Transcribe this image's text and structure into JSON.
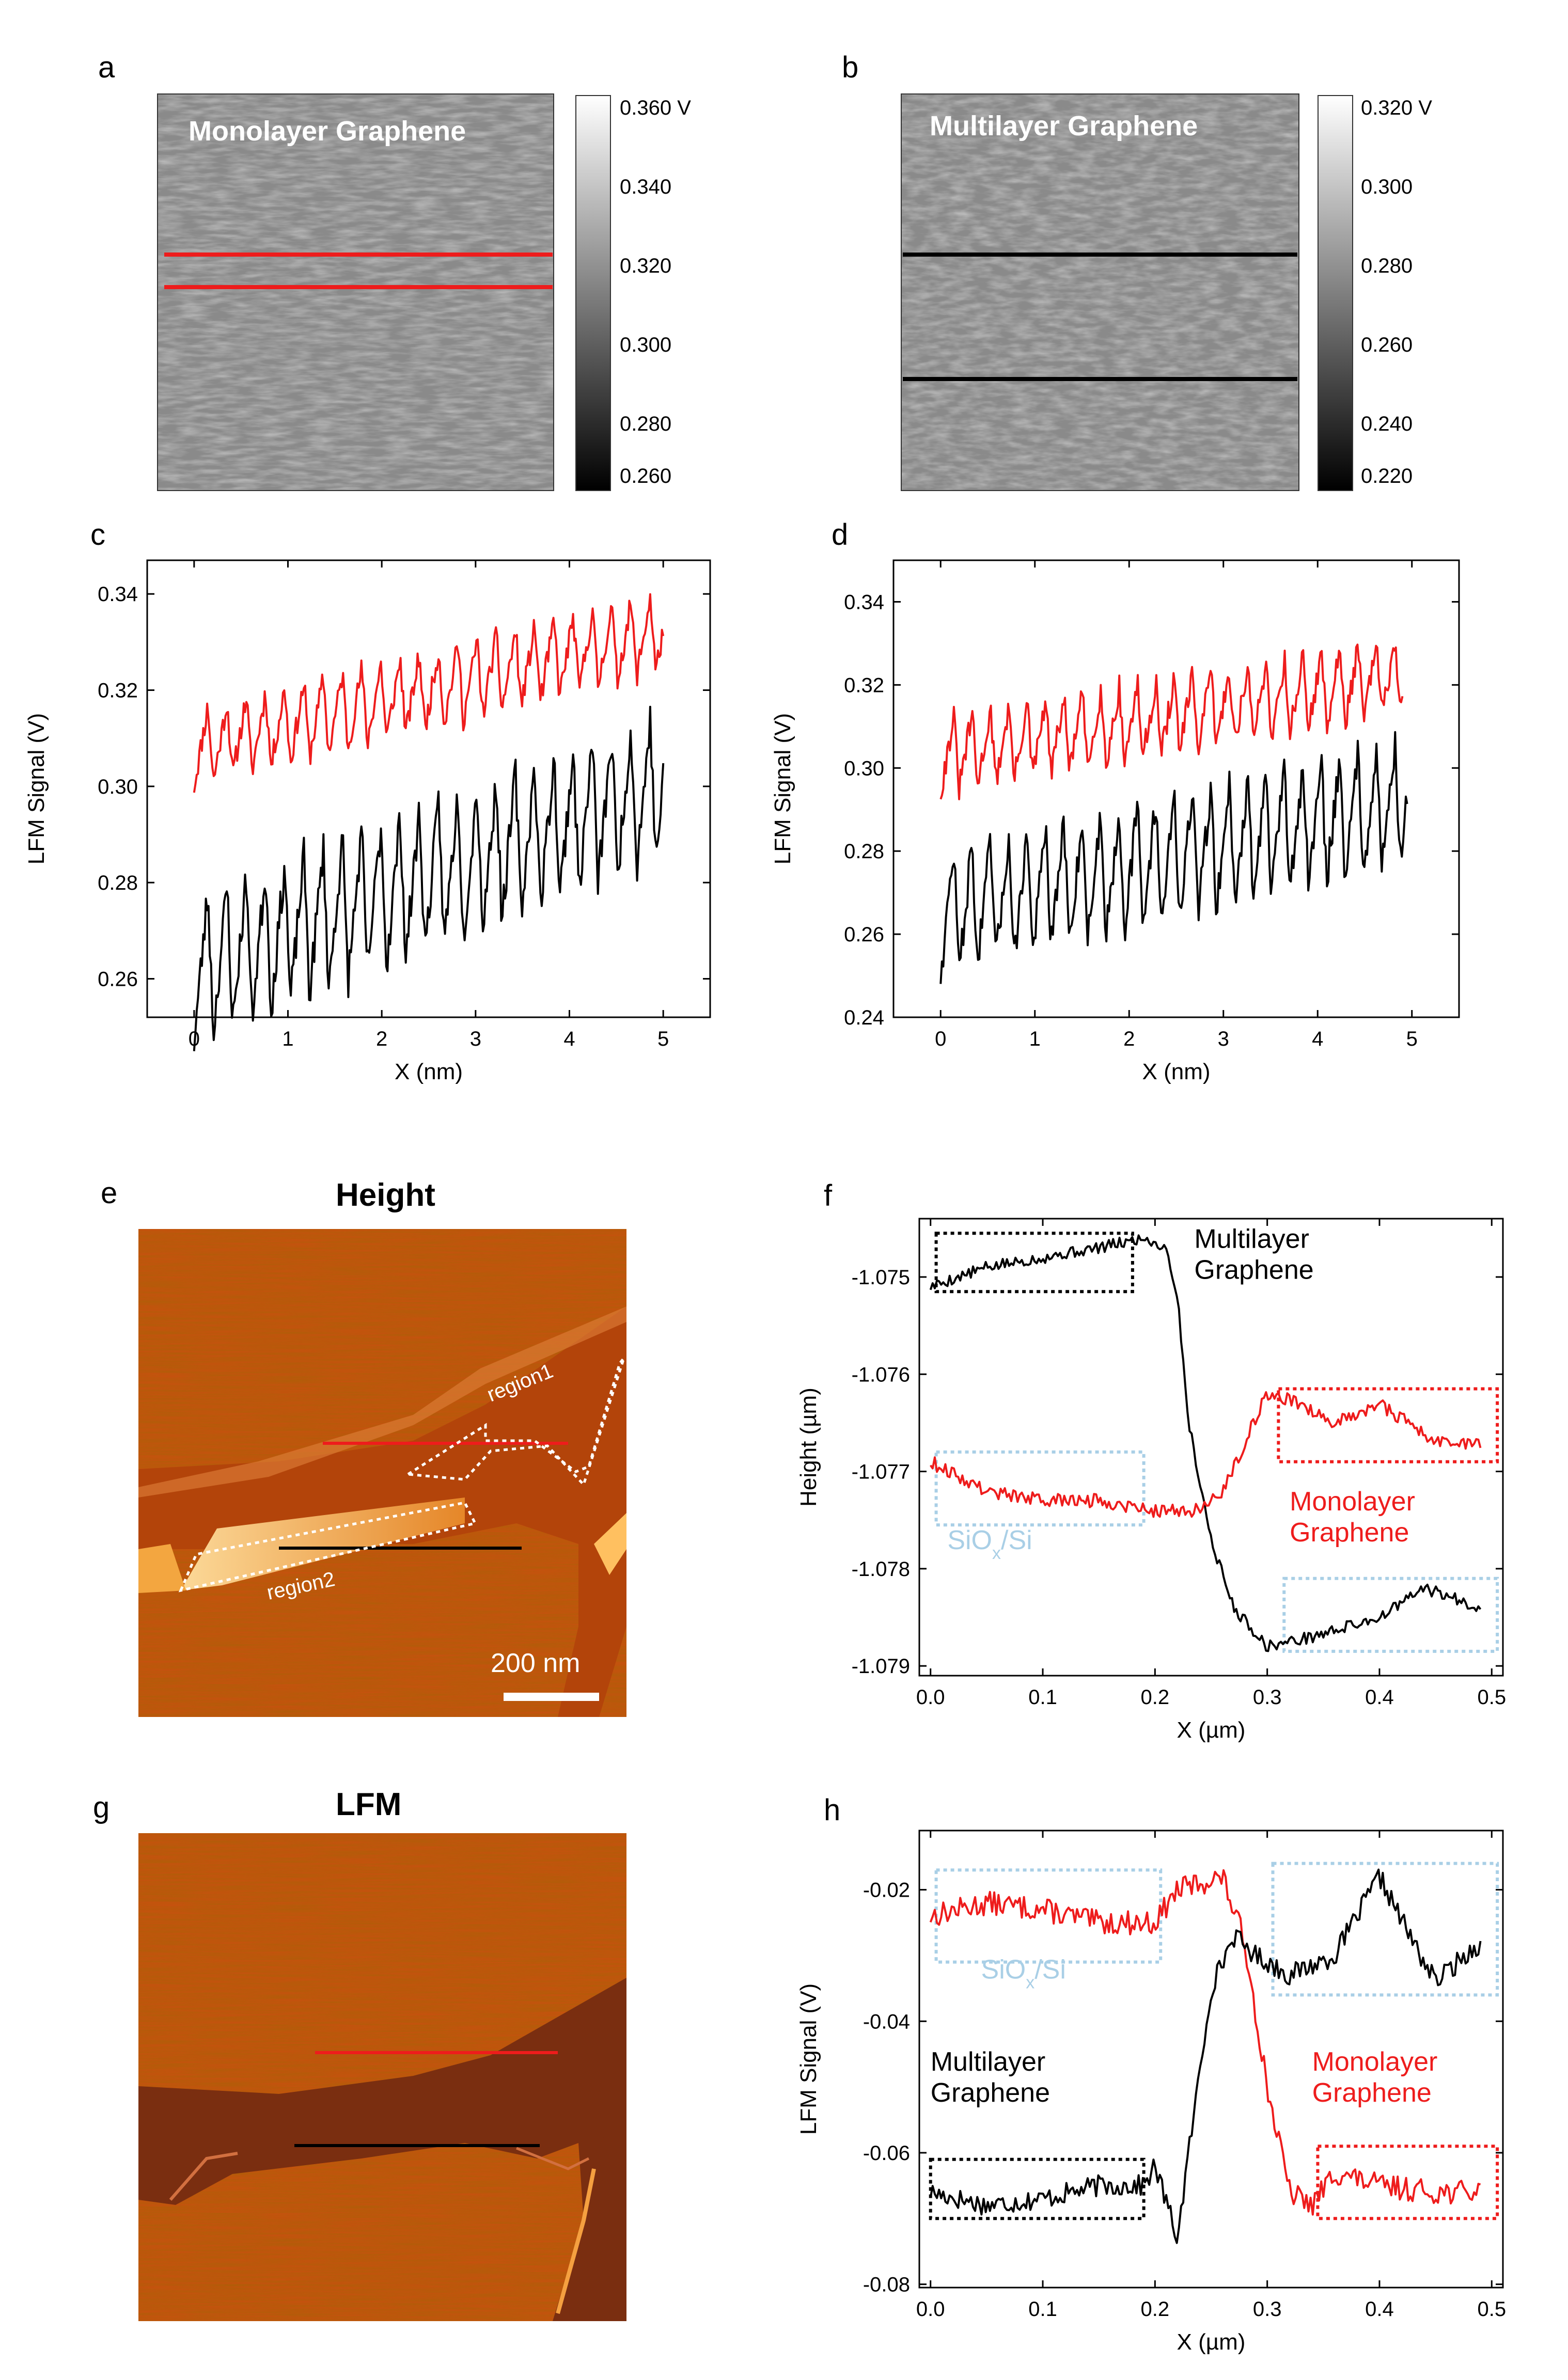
{
  "panels": {
    "a": {
      "label": "a",
      "title": "Monolayer Graphene",
      "colorbar": [
        "0.360 V",
        "0.340",
        "0.320",
        "0.300",
        "0.280",
        "0.260"
      ]
    },
    "b": {
      "label": "b",
      "title": "Multilayer Graphene",
      "colorbar": [
        "0.320 V",
        "0.300",
        "0.280",
        "0.260",
        "0.240",
        "0.220"
      ]
    },
    "c": {
      "label": "c"
    },
    "d": {
      "label": "d"
    },
    "e": {
      "label": "e",
      "title": "Height",
      "region1": "region1",
      "region2": "region2",
      "scalebar": "200 nm"
    },
    "f": {
      "label": "f"
    },
    "g": {
      "label": "g",
      "title": "LFM"
    },
    "h": {
      "label": "h"
    }
  },
  "colors": {
    "red": "#ee1c1c",
    "black": "#000000",
    "blue": "#a9cfe6",
    "afm_orange": "#c9500f"
  },
  "chart_data": [
    {
      "id": "c",
      "type": "line",
      "xlabel": "X (nm)",
      "ylabel": "LFM Signal (V)",
      "xlim": [
        -0.5,
        5.5
      ],
      "ylim": [
        0.252,
        0.347
      ],
      "xticks": [
        0,
        1,
        2,
        3,
        4,
        5
      ],
      "xtick_labels": [
        "0",
        "1",
        "2",
        "3",
        "4",
        "5"
      ],
      "yticks": [
        0.26,
        0.28,
        0.3,
        0.32,
        0.34
      ],
      "ytick_labels": [
        "0.26",
        "0.28",
        "0.30",
        "0.32",
        "0.34"
      ],
      "series": [
        {
          "name": "monolayer upper line",
          "color": "red",
          "pattern": "sawtooth",
          "x_range": [
            0,
            5
          ],
          "n": 360,
          "start": 0.308,
          "end": 0.332,
          "period": 0.205,
          "amp": 0.016,
          "noise": 0.0025,
          "seed": 11
        },
        {
          "name": "monolayer lower line",
          "color": "black",
          "pattern": "sawtooth",
          "x_range": [
            0,
            5
          ],
          "n": 360,
          "start": 0.262,
          "end": 0.3,
          "period": 0.205,
          "amp": 0.03,
          "noise": 0.004,
          "seed": 23
        }
      ]
    },
    {
      "id": "d",
      "type": "line",
      "xlabel": "X (nm)",
      "ylabel": "LFM Signal (V)",
      "xlim": [
        -0.5,
        5.5
      ],
      "ylim": [
        0.24,
        0.35
      ],
      "xticks": [
        0,
        1,
        2,
        3,
        4,
        5
      ],
      "xtick_labels": [
        "0",
        "1",
        "2",
        "3",
        "4",
        "5"
      ],
      "yticks": [
        0.24,
        0.26,
        0.28,
        0.3,
        0.32,
        0.34
      ],
      "ytick_labels": [
        "0.24",
        "0.26",
        "0.28",
        "0.30",
        "0.32",
        "0.34"
      ],
      "series": [
        {
          "name": "multilayer upper line",
          "color": "red",
          "pattern": "sawtooth",
          "x_range": [
            0,
            4.9
          ],
          "n": 350,
          "start": 0.303,
          "end": 0.322,
          "period": 0.195,
          "amp": 0.018,
          "noise": 0.003,
          "seed": 31
        },
        {
          "name": "multilayer lower line",
          "color": "black",
          "pattern": "sawtooth",
          "x_range": [
            0,
            4.95
          ],
          "n": 350,
          "start": 0.265,
          "end": 0.292,
          "period": 0.195,
          "amp": 0.03,
          "noise": 0.004,
          "seed": 47
        }
      ]
    },
    {
      "id": "f",
      "type": "line",
      "xlabel": "X (µm)",
      "ylabel": "Height (µm)",
      "xlim": [
        -0.01,
        0.51
      ],
      "ylim": [
        -1.0791,
        -1.0744
      ],
      "xticks": [
        0.0,
        0.1,
        0.2,
        0.3,
        0.4,
        0.5
      ],
      "xtick_labels": [
        "0.0",
        "0.1",
        "0.2",
        "0.3",
        "0.4",
        "0.5"
      ],
      "yticks": [
        -1.075,
        -1.076,
        -1.077,
        -1.078,
        -1.079
      ],
      "ytick_labels": [
        "-1.075",
        "-1.076",
        "-1.077",
        "-1.078",
        "-1.079"
      ],
      "series": [
        {
          "name": "Height across multilayer edge",
          "color": "black",
          "pattern": "knots",
          "noise": 6e-05,
          "seed": 5,
          "knots": [
            [
              0,
              -1.0751
            ],
            [
              0.05,
              -1.0749
            ],
            [
              0.1,
              -1.0748
            ],
            [
              0.15,
              -1.0747
            ],
            [
              0.19,
              -1.0746
            ],
            [
              0.21,
              -1.0747
            ],
            [
              0.22,
              -1.0752
            ],
            [
              0.23,
              -1.0765
            ],
            [
              0.25,
              -1.0777
            ],
            [
              0.27,
              -1.0784
            ],
            [
              0.3,
              -1.0788
            ],
            [
              0.34,
              -1.0787
            ],
            [
              0.4,
              -1.0785
            ],
            [
              0.44,
              -1.0782
            ],
            [
              0.49,
              -1.0784
            ]
          ]
        },
        {
          "name": "Height across monolayer edge",
          "color": "red",
          "pattern": "knots",
          "noise": 7e-05,
          "seed": 9,
          "knots": [
            [
              0,
              -1.0769
            ],
            [
              0.05,
              -1.0772
            ],
            [
              0.1,
              -1.0773
            ],
            [
              0.15,
              -1.0773
            ],
            [
              0.2,
              -1.0774
            ],
            [
              0.24,
              -1.0774
            ],
            [
              0.26,
              -1.0772
            ],
            [
              0.28,
              -1.0767
            ],
            [
              0.3,
              -1.0762
            ],
            [
              0.33,
              -1.0763
            ],
            [
              0.36,
              -1.0765
            ],
            [
              0.4,
              -1.0763
            ],
            [
              0.45,
              -1.0767
            ],
            [
              0.49,
              -1.0767
            ]
          ]
        }
      ],
      "annotations": [
        {
          "text": [
            "Multilayer",
            "Graphene"
          ],
          "color": "black",
          "x": 0.235,
          "y": -1.0747
        },
        {
          "text": [
            "Monolayer",
            "Graphene"
          ],
          "color": "red",
          "x": 0.32,
          "y": -1.0774
        },
        {
          "text": [
            "SiOx/Si"
          ],
          "color": "blue",
          "x": 0.015,
          "y": -1.0778
        }
      ],
      "boxes": [
        {
          "color": "black",
          "x0": 0.005,
          "x1": 0.18,
          "y0": -1.07455,
          "y1": -1.07515
        },
        {
          "color": "red",
          "x0": 0.31,
          "x1": 0.505,
          "y0": -1.07615,
          "y1": -1.0769
        },
        {
          "color": "blue",
          "x0": 0.005,
          "x1": 0.19,
          "y0": -1.0768,
          "y1": -1.07755
        },
        {
          "color": "blue",
          "x0": 0.315,
          "x1": 0.505,
          "y0": -1.0781,
          "y1": -1.07885
        }
      ]
    },
    {
      "id": "h",
      "type": "line",
      "xlabel": "X (µm)",
      "ylabel": "LFM Signal (V)",
      "xlim": [
        -0.01,
        0.51
      ],
      "ylim": [
        -0.0805,
        -0.011
      ],
      "xticks": [
        0.0,
        0.1,
        0.2,
        0.3,
        0.4,
        0.5
      ],
      "xtick_labels": [
        "0.0",
        "0.1",
        "0.2",
        "0.3",
        "0.4",
        "0.5"
      ],
      "yticks": [
        -0.02,
        -0.04,
        -0.06,
        -0.08
      ],
      "ytick_labels": [
        "-0.02",
        "-0.04",
        "-0.06",
        "-0.08"
      ],
      "series": [
        {
          "name": "LFM across monolayer edge",
          "color": "red",
          "pattern": "knots",
          "noise": 0.0018,
          "seed": 13,
          "knots": [
            [
              0,
              -0.024
            ],
            [
              0.05,
              -0.022
            ],
            [
              0.1,
              -0.023
            ],
            [
              0.15,
              -0.025
            ],
            [
              0.2,
              -0.025
            ],
            [
              0.22,
              -0.02
            ],
            [
              0.26,
              -0.018
            ],
            [
              0.28,
              -0.028
            ],
            [
              0.3,
              -0.05
            ],
            [
              0.32,
              -0.066
            ],
            [
              0.34,
              -0.068
            ],
            [
              0.36,
              -0.063
            ],
            [
              0.4,
              -0.065
            ],
            [
              0.45,
              -0.066
            ],
            [
              0.49,
              -0.066
            ]
          ]
        },
        {
          "name": "LFM across multilayer edge",
          "color": "black",
          "pattern": "knots",
          "noise": 0.0016,
          "seed": 17,
          "knots": [
            [
              0,
              -0.066
            ],
            [
              0.05,
              -0.068
            ],
            [
              0.1,
              -0.067
            ],
            [
              0.15,
              -0.065
            ],
            [
              0.19,
              -0.065
            ],
            [
              0.2,
              -0.062
            ],
            [
              0.22,
              -0.073
            ],
            [
              0.23,
              -0.06
            ],
            [
              0.25,
              -0.035
            ],
            [
              0.27,
              -0.027
            ],
            [
              0.29,
              -0.03
            ],
            [
              0.32,
              -0.033
            ],
            [
              0.36,
              -0.03
            ],
            [
              0.4,
              -0.018
            ],
            [
              0.43,
              -0.028
            ],
            [
              0.45,
              -0.034
            ],
            [
              0.49,
              -0.028
            ]
          ]
        }
      ],
      "annotations": [
        {
          "text": [
            "Multilayer",
            "Graphene"
          ],
          "color": "black",
          "x": 0.0,
          "y": -0.0475
        },
        {
          "text": [
            "Monolayer",
            "Graphene"
          ],
          "color": "red",
          "x": 0.34,
          "y": -0.0475
        },
        {
          "text": [
            "SiOx/Si"
          ],
          "color": "blue",
          "x": 0.045,
          "y": -0.0335
        }
      ],
      "boxes": [
        {
          "color": "black",
          "x0": 0.0,
          "x1": 0.19,
          "y0": -0.061,
          "y1": -0.07
        },
        {
          "color": "red",
          "x0": 0.345,
          "x1": 0.505,
          "y0": -0.059,
          "y1": -0.07
        },
        {
          "color": "blue",
          "x0": 0.005,
          "x1": 0.205,
          "y0": -0.017,
          "y1": -0.031
        },
        {
          "color": "blue",
          "x0": 0.305,
          "x1": 0.505,
          "y0": -0.016,
          "y1": -0.036
        }
      ]
    }
  ]
}
